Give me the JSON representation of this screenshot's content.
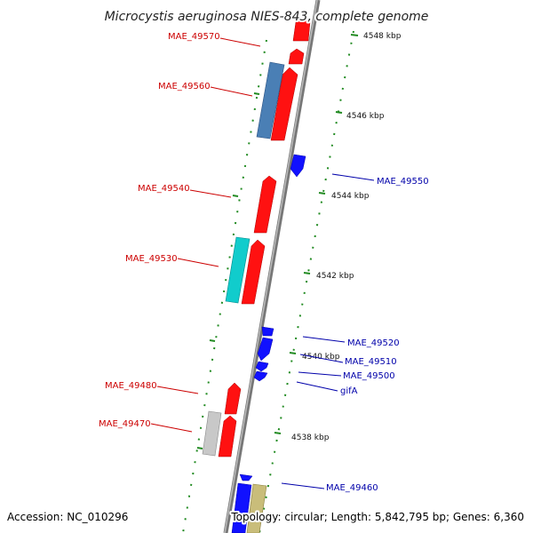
{
  "title": "Microcystis aeruginosa NIES-843, complete genome",
  "accession": "Accession: NC_010296",
  "topology": "Topology: circular; Length: 5,842,795 bp; Genes: 6,360",
  "colors": {
    "plus_strand": "#ff0000",
    "minus_strand": "#0000ff",
    "label_plus": "#cc0000",
    "label_minus": "#0000aa",
    "backbone": "#888888",
    "tick": "#228b22"
  },
  "ticks": [
    {
      "label": "4548 kbp"
    },
    {
      "label": "4546 kbp"
    },
    {
      "label": "4544 kbp"
    },
    {
      "label": "4542 kbp"
    },
    {
      "label": "4540 kbp"
    },
    {
      "label": "4538 kbp"
    }
  ],
  "gene_labels": [
    {
      "text": "MAE_49570",
      "strand": "+"
    },
    {
      "text": "MAE_49560",
      "strand": "+"
    },
    {
      "text": "MAE_49550",
      "strand": "-"
    },
    {
      "text": "MAE_49540",
      "strand": "+"
    },
    {
      "text": "MAE_49530",
      "strand": "+"
    },
    {
      "text": "MAE_49520",
      "strand": "-"
    },
    {
      "text": "MAE_49510",
      "strand": "-"
    },
    {
      "text": "MAE_49500",
      "strand": "-"
    },
    {
      "text": "gifA",
      "strand": "-"
    },
    {
      "text": "MAE_49480",
      "strand": "+"
    },
    {
      "text": "MAE_49470",
      "strand": "+"
    },
    {
      "text": "MAE_49460",
      "strand": "-"
    }
  ]
}
